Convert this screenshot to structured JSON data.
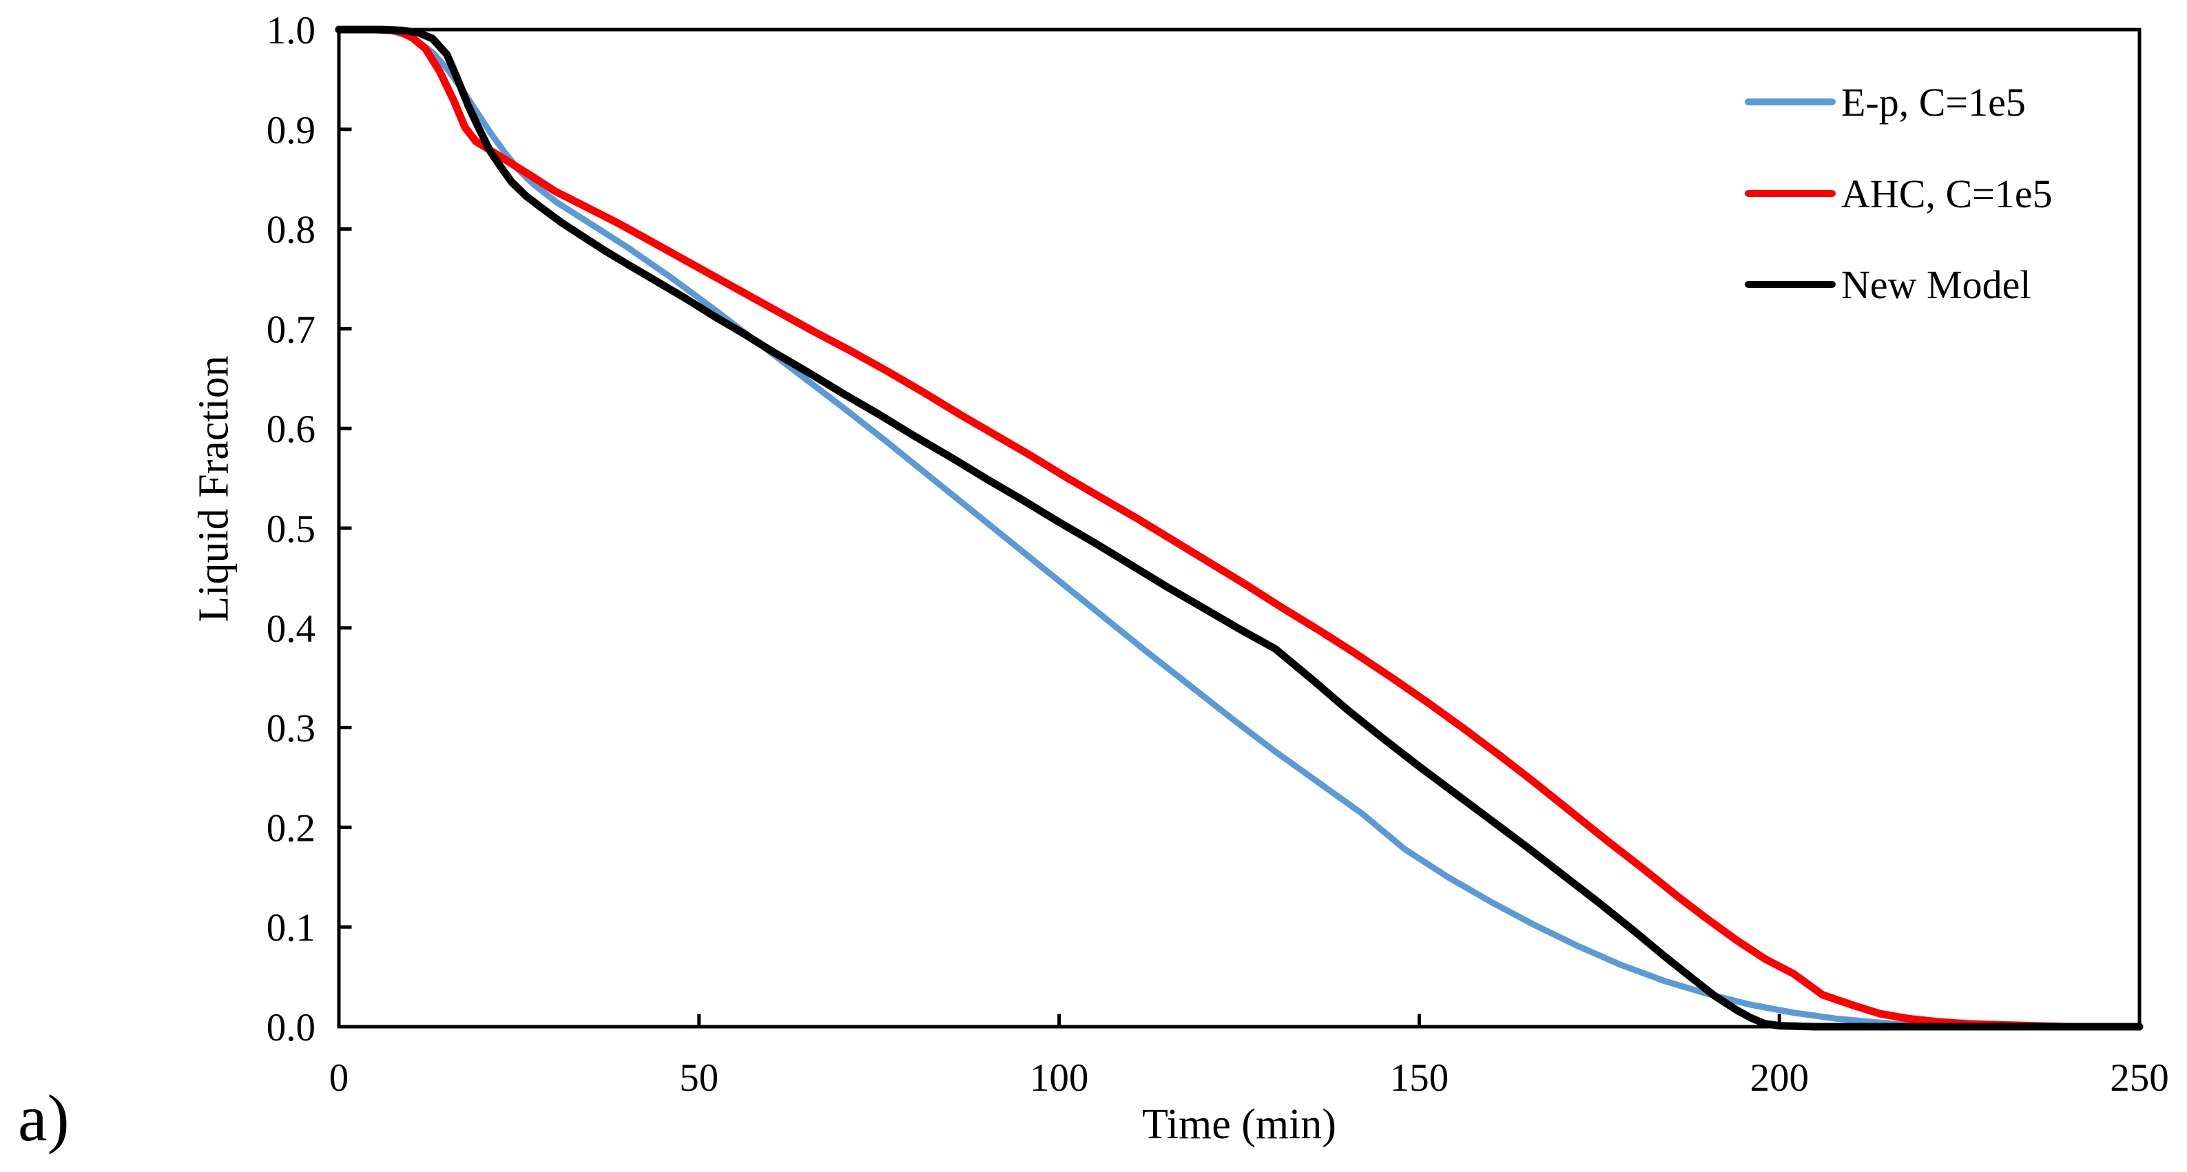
{
  "figure": {
    "panel_label": "a)",
    "background_color": "#FFFFFF"
  },
  "chart_data": {
    "type": "line",
    "title": "",
    "xlabel": "Time (min)",
    "ylabel": "Liquid Fraction",
    "xlim": [
      0,
      250
    ],
    "ylim": [
      0.0,
      1.0
    ],
    "x_ticks": [
      0,
      50,
      100,
      150,
      200,
      250
    ],
    "x_tick_labels": [
      "0",
      "50",
      "100",
      "150",
      "200",
      "250"
    ],
    "y_ticks": [
      0.0,
      0.1,
      0.2,
      0.3,
      0.4,
      0.5,
      0.6,
      0.7,
      0.8,
      0.9,
      1.0
    ],
    "y_tick_labels": [
      "0.0",
      "0.1",
      "0.2",
      "0.3",
      "0.4",
      "0.5",
      "0.6",
      "0.7",
      "0.8",
      "0.9",
      "1.0"
    ],
    "grid": false,
    "legend_position": "upper-right-inside",
    "axis_color": "#000000",
    "tick_style": "inward",
    "series": [
      {
        "name": "E-p, C=1e5",
        "color": "#5B9BD5",
        "stroke_width": 9,
        "points": [
          [
            0,
            1
          ],
          [
            5,
            1
          ],
          [
            7,
            0.999
          ],
          [
            9,
            0.995
          ],
          [
            11,
            0.988
          ],
          [
            13,
            0.977
          ],
          [
            15,
            0.961
          ],
          [
            17,
            0.941
          ],
          [
            19,
            0.919
          ],
          [
            21,
            0.897
          ],
          [
            23,
            0.877
          ],
          [
            25,
            0.859
          ],
          [
            27,
            0.845
          ],
          [
            30,
            0.828
          ],
          [
            35,
            0.805
          ],
          [
            40,
            0.782
          ],
          [
            46,
            0.752
          ],
          [
            52,
            0.72
          ],
          [
            58,
            0.687
          ],
          [
            64,
            0.654
          ],
          [
            70,
            0.621
          ],
          [
            76,
            0.587
          ],
          [
            82,
            0.552
          ],
          [
            88,
            0.517
          ],
          [
            94,
            0.482
          ],
          [
            100,
            0.447
          ],
          [
            106,
            0.412
          ],
          [
            112,
            0.377
          ],
          [
            118,
            0.343
          ],
          [
            124,
            0.309
          ],
          [
            130,
            0.276
          ],
          [
            136,
            0.245
          ],
          [
            142,
            0.214
          ],
          [
            148,
            0.178
          ],
          [
            154,
            0.15
          ],
          [
            160,
            0.125
          ],
          [
            166,
            0.102
          ],
          [
            172,
            0.081
          ],
          [
            178,
            0.062
          ],
          [
            184,
            0.046
          ],
          [
            190,
            0.033
          ],
          [
            196,
            0.022
          ],
          [
            202,
            0.014
          ],
          [
            208,
            0.008
          ],
          [
            214,
            0.004
          ],
          [
            220,
            0.001
          ],
          [
            225,
            0
          ]
        ]
      },
      {
        "name": "AHC, C=1e5",
        "color": "#FF0000",
        "stroke_width": 11,
        "points": [
          [
            0,
            1
          ],
          [
            5,
            1
          ],
          [
            8,
            0.999
          ],
          [
            10,
            0.993
          ],
          [
            12,
            0.981
          ],
          [
            14,
            0.958
          ],
          [
            16,
            0.928
          ],
          [
            17.5,
            0.902
          ],
          [
            19,
            0.888
          ],
          [
            21,
            0.879
          ],
          [
            23,
            0.87
          ],
          [
            25,
            0.861
          ],
          [
            27,
            0.852
          ],
          [
            30,
            0.838
          ],
          [
            33,
            0.827
          ],
          [
            36,
            0.816
          ],
          [
            39,
            0.805
          ],
          [
            43,
            0.789
          ],
          [
            47,
            0.773
          ],
          [
            51,
            0.757
          ],
          [
            56,
            0.737
          ],
          [
            61,
            0.717
          ],
          [
            66,
            0.697
          ],
          [
            71,
            0.678
          ],
          [
            76,
            0.658
          ],
          [
            81,
            0.637
          ],
          [
            86,
            0.615
          ],
          [
            91,
            0.594
          ],
          [
            96,
            0.573
          ],
          [
            101,
            0.551
          ],
          [
            106,
            0.53
          ],
          [
            111,
            0.509
          ],
          [
            116,
            0.487
          ],
          [
            121,
            0.465
          ],
          [
            126,
            0.443
          ],
          [
            131,
            0.42
          ],
          [
            136,
            0.398
          ],
          [
            141,
            0.375
          ],
          [
            146,
            0.351
          ],
          [
            151,
            0.326
          ],
          [
            156,
            0.3
          ],
          [
            161,
            0.273
          ],
          [
            166,
            0.245
          ],
          [
            171,
            0.216
          ],
          [
            176,
            0.187
          ],
          [
            181,
            0.159
          ],
          [
            186,
            0.13
          ],
          [
            190,
            0.108
          ],
          [
            194,
            0.087
          ],
          [
            198,
            0.068
          ],
          [
            202,
            0.053
          ],
          [
            206,
            0.032
          ],
          [
            210,
            0.022
          ],
          [
            214,
            0.013
          ],
          [
            218,
            0.008
          ],
          [
            222,
            0.005
          ],
          [
            226,
            0.003
          ],
          [
            230,
            0.002
          ],
          [
            235,
            0.001
          ],
          [
            240,
            0
          ],
          [
            245,
            0
          ]
        ]
      },
      {
        "name": "New Model",
        "color": "#000000",
        "stroke_width": 11,
        "points": [
          [
            0,
            1
          ],
          [
            6,
            1
          ],
          [
            9,
            0.999
          ],
          [
            11,
            0.997
          ],
          [
            13,
            0.991
          ],
          [
            15,
            0.975
          ],
          [
            16.5,
            0.95
          ],
          [
            18,
            0.923
          ],
          [
            19.5,
            0.9
          ],
          [
            21,
            0.878
          ],
          [
            22.5,
            0.862
          ],
          [
            24,
            0.847
          ],
          [
            26,
            0.833
          ],
          [
            28,
            0.822
          ],
          [
            31,
            0.806
          ],
          [
            34,
            0.792
          ],
          [
            37,
            0.778
          ],
          [
            40,
            0.765
          ],
          [
            44,
            0.748
          ],
          [
            48,
            0.731
          ],
          [
            52,
            0.713
          ],
          [
            56,
            0.696
          ],
          [
            60,
            0.678
          ],
          [
            65,
            0.657
          ],
          [
            70,
            0.635
          ],
          [
            75,
            0.614
          ],
          [
            80,
            0.592
          ],
          [
            85,
            0.571
          ],
          [
            90,
            0.549
          ],
          [
            95,
            0.528
          ],
          [
            100,
            0.506
          ],
          [
            105,
            0.485
          ],
          [
            110,
            0.463
          ],
          [
            115,
            0.441
          ],
          [
            120,
            0.42
          ],
          [
            125,
            0.399
          ],
          [
            130,
            0.379
          ],
          [
            135,
            0.349
          ],
          [
            140,
            0.318
          ],
          [
            145,
            0.289
          ],
          [
            150,
            0.261
          ],
          [
            155,
            0.234
          ],
          [
            160,
            0.207
          ],
          [
            165,
            0.18
          ],
          [
            170,
            0.152
          ],
          [
            175,
            0.124
          ],
          [
            180,
            0.095
          ],
          [
            184,
            0.071
          ],
          [
            188,
            0.048
          ],
          [
            191,
            0.031
          ],
          [
            194,
            0.017
          ],
          [
            196,
            0.009
          ],
          [
            198,
            0.003
          ],
          [
            200,
            0.001
          ],
          [
            205,
            0
          ],
          [
            250,
            0
          ]
        ]
      }
    ]
  }
}
